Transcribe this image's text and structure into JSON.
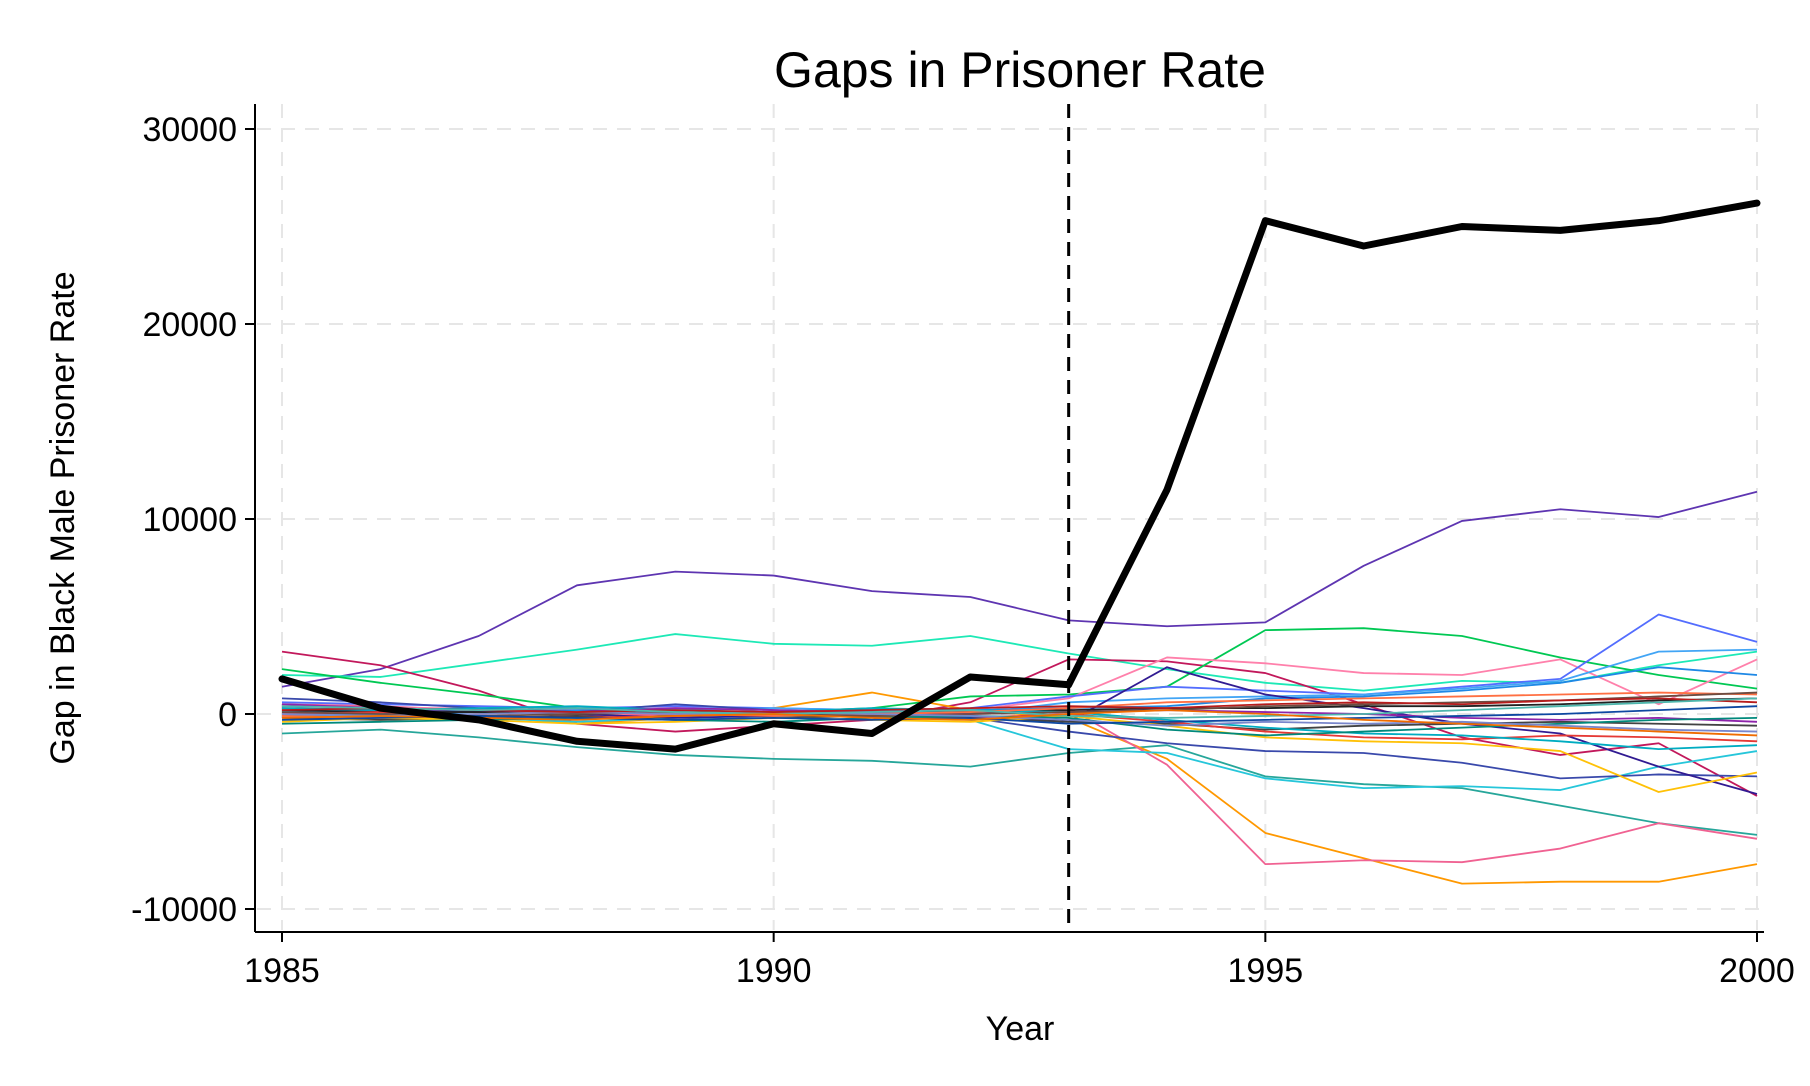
{
  "chart_data": {
    "type": "line",
    "title": "Gaps in Prisoner Rate",
    "xlabel": "Year",
    "ylabel": "Gap in Black Male Prisoner Rate",
    "xlim": [
      1985,
      2000
    ],
    "ylim": [
      -11000,
      30000
    ],
    "x_ticks": [
      1985,
      1990,
      1995,
      2000
    ],
    "x_tick_labels": [
      "1985",
      "1990",
      "1995",
      "2000"
    ],
    "y_ticks": [
      -10000,
      0,
      10000,
      20000,
      30000
    ],
    "y_tick_labels": [
      "-10000",
      "0",
      "10000",
      "20000",
      "30000"
    ],
    "grid": true,
    "treatment_line_x": 1993,
    "x": [
      1985,
      1986,
      1987,
      1988,
      1989,
      1990,
      1991,
      1992,
      1993,
      1994,
      1995,
      1996,
      1997,
      1998,
      1999,
      2000
    ],
    "highlight_series": {
      "color": "#000000",
      "values": [
        1800,
        300,
        -300,
        -1400,
        -1800,
        -500,
        -1000,
        1900,
        1500,
        11500,
        25300,
        24000,
        25000,
        24800,
        25300,
        26200
      ]
    },
    "series": [
      {
        "color": "#5e35b1",
        "values": [
          1400,
          2300,
          4000,
          6600,
          7300,
          7100,
          6300,
          6000,
          4800,
          4500,
          4700,
          7600,
          9900,
          10500,
          10100,
          11400
        ]
      },
      {
        "color": "#1de9b6",
        "values": [
          2000,
          1900,
          2600,
          3300,
          4100,
          3600,
          3500,
          4000,
          3100,
          2300,
          1600,
          1200,
          1700,
          1600,
          2500,
          3200
        ]
      },
      {
        "color": "#c2185b",
        "values": [
          3200,
          2500,
          1200,
          -500,
          -900,
          -600,
          -300,
          600,
          2800,
          2700,
          2100,
          500,
          -1200,
          -2100,
          -1500,
          -4200
        ]
      },
      {
        "color": "#00c853",
        "values": [
          2300,
          1600,
          1000,
          300,
          -100,
          100,
          300,
          900,
          1000,
          1400,
          4300,
          4400,
          4000,
          2900,
          2000,
          1300
        ]
      },
      {
        "color": "#26a69a",
        "values": [
          -1000,
          -800,
          -1200,
          -1700,
          -2100,
          -2300,
          -2400,
          -2700,
          -2000,
          -1600,
          -3200,
          -3600,
          -3800,
          -4700,
          -5600,
          -6200
        ]
      },
      {
        "color": "#ff9800",
        "values": [
          -200,
          -300,
          -100,
          -500,
          -200,
          300,
          1100,
          200,
          -200,
          -2300,
          -6100,
          -7400,
          -8700,
          -8600,
          -8600,
          -7700
        ]
      },
      {
        "color": "#f06292",
        "values": [
          500,
          400,
          200,
          -100,
          0,
          100,
          -100,
          0,
          300,
          -2600,
          -7700,
          -7500,
          -7600,
          -6900,
          -5600,
          -6400
        ]
      },
      {
        "color": "#26c6da",
        "values": [
          -300,
          -100,
          -200,
          -400,
          -200,
          -100,
          -100,
          -300,
          -1800,
          -2000,
          -3300,
          -3800,
          -3700,
          -3900,
          -2700,
          -1900
        ]
      },
      {
        "color": "#ff80ab",
        "values": [
          400,
          300,
          300,
          200,
          300,
          200,
          100,
          200,
          800,
          2900,
          2600,
          2100,
          2000,
          2800,
          500,
          2800
        ]
      },
      {
        "color": "#536dfe",
        "values": [
          600,
          500,
          400,
          300,
          400,
          300,
          200,
          300,
          900,
          1400,
          1200,
          1000,
          1400,
          1800,
          5100,
          3700
        ]
      },
      {
        "color": "#42a5f5",
        "values": [
          100,
          200,
          100,
          0,
          200,
          300,
          200,
          0,
          600,
          800,
          900,
          1000,
          1300,
          1700,
          3200,
          3300
        ]
      },
      {
        "color": "#1e88e5",
        "values": [
          -100,
          0,
          100,
          200,
          100,
          0,
          100,
          200,
          300,
          400,
          800,
          900,
          1200,
          1600,
          2400,
          2000
        ]
      },
      {
        "color": "#3949ab",
        "values": [
          800,
          600,
          300,
          100,
          500,
          200,
          0,
          -200,
          -900,
          -1500,
          -1900,
          -2000,
          -2500,
          -3300,
          -3100,
          -3200
        ]
      },
      {
        "color": "#311b92",
        "values": [
          300,
          200,
          100,
          0,
          -200,
          -100,
          0,
          -100,
          -400,
          2400,
          1000,
          300,
          -500,
          -1000,
          -2700,
          -4100
        ]
      },
      {
        "color": "#212121",
        "values": [
          200,
          100,
          100,
          0,
          100,
          0,
          100,
          100,
          200,
          300,
          300,
          400,
          400,
          500,
          700,
          800
        ]
      },
      {
        "color": "#424242",
        "values": [
          -200,
          -300,
          -200,
          -100,
          -300,
          -200,
          -100,
          -200,
          -400,
          -500,
          -800,
          -600,
          -500,
          -400,
          -500,
          -600
        ]
      },
      {
        "color": "#e53935",
        "values": [
          0,
          100,
          -100,
          -200,
          -100,
          0,
          -100,
          -200,
          0,
          -400,
          -900,
          -1200,
          -1300,
          -1100,
          -1200,
          -1400
        ]
      },
      {
        "color": "#ffc107",
        "values": [
          -400,
          -200,
          -300,
          -500,
          -400,
          -200,
          -300,
          -400,
          -100,
          -600,
          -1200,
          -1400,
          -1500,
          -1900,
          -4000,
          -3000
        ]
      },
      {
        "color": "#00acc1",
        "values": [
          300,
          200,
          300,
          400,
          200,
          100,
          300,
          200,
          100,
          -300,
          -700,
          -1000,
          -1100,
          -1400,
          -1800,
          -1600
        ]
      },
      {
        "color": "#8e24aa",
        "values": [
          500,
          300,
          200,
          100,
          300,
          200,
          100,
          0,
          100,
          200,
          100,
          0,
          -200,
          -300,
          -200,
          -400
        ]
      },
      {
        "color": "#ff7043",
        "values": [
          -100,
          -200,
          0,
          100,
          0,
          -100,
          0,
          100,
          300,
          600,
          700,
          800,
          900,
          1000,
          1100,
          1000
        ]
      },
      {
        "color": "#6d4c41",
        "values": [
          100,
          0,
          -100,
          0,
          100,
          0,
          -100,
          0,
          100,
          200,
          400,
          500,
          600,
          700,
          900,
          1100
        ]
      },
      {
        "color": "#00897b",
        "values": [
          -500,
          -400,
          -300,
          -200,
          -300,
          -400,
          -200,
          -100,
          -200,
          -800,
          -1100,
          -900,
          -700,
          -500,
          -300,
          -200
        ]
      },
      {
        "color": "#7986cb",
        "values": [
          0,
          -100,
          0,
          100,
          0,
          100,
          0,
          -100,
          -300,
          -600,
          -400,
          -500,
          -400,
          -600,
          -800,
          -900
        ]
      },
      {
        "color": "#b71c1c",
        "values": [
          200,
          300,
          200,
          100,
          200,
          100,
          200,
          300,
          400,
          300,
          500,
          600,
          500,
          700,
          800,
          600
        ]
      },
      {
        "color": "#0d47a1",
        "values": [
          -300,
          -200,
          -100,
          -200,
          -300,
          -200,
          -300,
          -200,
          -500,
          -400,
          -300,
          -200,
          -100,
          0,
          200,
          400
        ]
      },
      {
        "color": "#4db6ac",
        "values": [
          400,
          300,
          200,
          300,
          100,
          0,
          100,
          200,
          -100,
          -200,
          -100,
          0,
          200,
          400,
          600,
          800
        ]
      },
      {
        "color": "#ef6c00",
        "values": [
          -200,
          -100,
          -200,
          -300,
          -100,
          0,
          -200,
          -300,
          0,
          200,
          0,
          -300,
          -500,
          -700,
          -900,
          -1100
        ]
      }
    ]
  }
}
